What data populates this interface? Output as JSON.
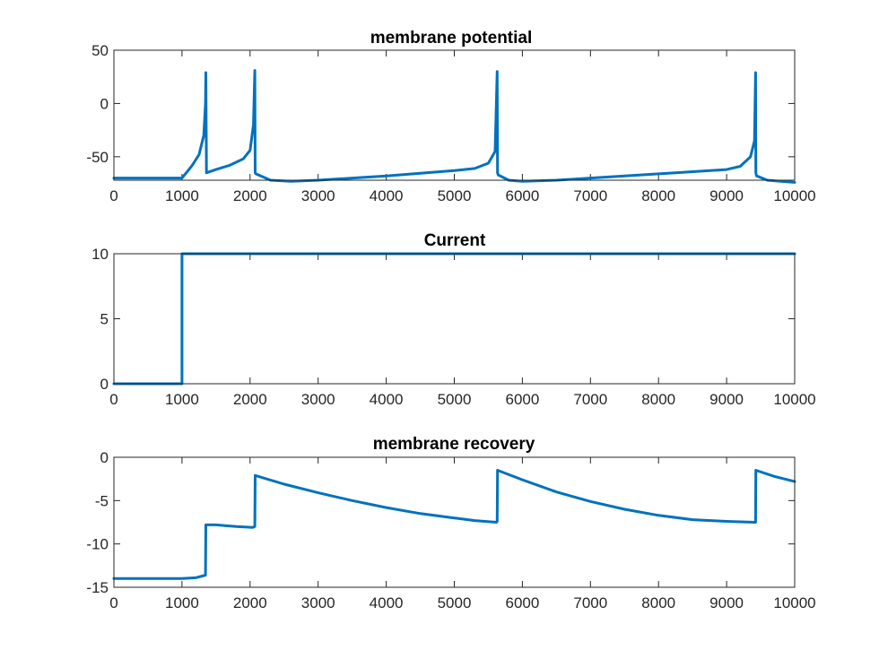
{
  "chart_data": [
    {
      "type": "line",
      "title": "membrane potential",
      "xlabel": "",
      "ylabel": "",
      "xlim": [
        0,
        10000
      ],
      "ylim": [
        -72,
        50
      ],
      "xticks": [
        "0",
        "1000",
        "2000",
        "3000",
        "4000",
        "5000",
        "6000",
        "7000",
        "8000",
        "9000",
        "10000"
      ],
      "yticks": [
        "50",
        "0",
        "-50"
      ],
      "grid": false,
      "legend": "none",
      "color": "#0072BD",
      "series": [
        {
          "x": [
            0,
            1000,
            1050,
            1150,
            1250,
            1320,
            1345,
            1350,
            1360,
            1500,
            1700,
            1900,
            2000,
            2050,
            2070,
            2075,
            2085,
            2300,
            2600,
            3000,
            4000,
            5000,
            5300,
            5500,
            5600,
            5630,
            5635,
            5645,
            5800,
            6000,
            6500,
            7000,
            8000,
            9000,
            9200,
            9350,
            9410,
            9425,
            9430,
            9440,
            9600,
            9800,
            10000
          ],
          "y": [
            -70,
            -70,
            -66,
            -58,
            -48,
            -30,
            0,
            29,
            -65,
            -62,
            -58,
            -52,
            -44,
            -20,
            31,
            -65,
            -66,
            -72,
            -73,
            -72,
            -68,
            -63,
            -61,
            -56,
            -45,
            30,
            -65,
            -67,
            -72,
            -73,
            -72,
            -70,
            -66,
            -62,
            -59,
            -50,
            -35,
            29,
            -65,
            -68,
            -72,
            -73,
            -74
          ]
        }
      ]
    },
    {
      "type": "line",
      "title": "Current",
      "xlabel": "",
      "ylabel": "",
      "xlim": [
        0,
        10000
      ],
      "ylim": [
        0,
        10
      ],
      "xticks": [
        "0",
        "1000",
        "2000",
        "3000",
        "4000",
        "5000",
        "6000",
        "7000",
        "8000",
        "9000",
        "10000"
      ],
      "yticks": [
        "10",
        "5",
        "0"
      ],
      "grid": false,
      "legend": "none",
      "color": "#0072BD",
      "series": [
        {
          "x": [
            0,
            1000,
            1000,
            10000
          ],
          "y": [
            0,
            0,
            10,
            10
          ]
        }
      ]
    },
    {
      "type": "line",
      "title": "membrane recovery",
      "xlabel": "",
      "ylabel": "",
      "xlim": [
        0,
        10000
      ],
      "ylim": [
        -15,
        0
      ],
      "xticks": [
        "0",
        "1000",
        "2000",
        "3000",
        "4000",
        "5000",
        "6000",
        "7000",
        "8000",
        "9000",
        "10000"
      ],
      "yticks": [
        "0",
        "-5",
        "-10",
        "-15"
      ],
      "grid": false,
      "legend": "none",
      "color": "#0072BD",
      "series": [
        {
          "x": [
            0,
            1000,
            1200,
            1345,
            1350,
            1500,
            1800,
            2040,
            2070,
            2075,
            2500,
            3000,
            3500,
            4000,
            4500,
            5000,
            5300,
            5620,
            5630,
            5635,
            6000,
            6500,
            7000,
            7500,
            8000,
            8500,
            9000,
            9410,
            9425,
            9430,
            9700,
            10000
          ],
          "y": [
            -14,
            -14,
            -13.9,
            -13.6,
            -7.8,
            -7.8,
            -8.0,
            -8.1,
            -8.0,
            -2.1,
            -3.1,
            -4.1,
            -5.0,
            -5.8,
            -6.5,
            -7.0,
            -7.3,
            -7.5,
            -7.4,
            -1.5,
            -2.6,
            -4.0,
            -5.1,
            -6.0,
            -6.7,
            -7.2,
            -7.4,
            -7.5,
            -7.5,
            -1.5,
            -2.2,
            -2.8
          ]
        }
      ]
    }
  ]
}
